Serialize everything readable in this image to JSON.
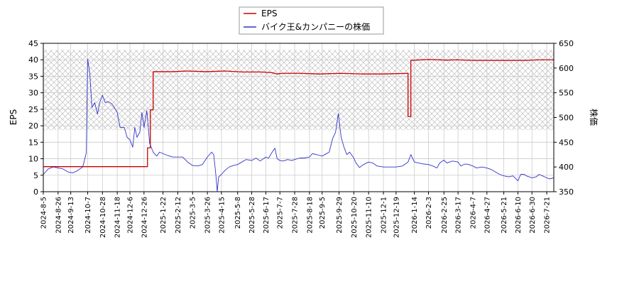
{
  "chart_data": {
    "type": "line",
    "legend_position": "top-center",
    "grid": true,
    "y_left": {
      "label": "EPS",
      "lim": [
        0,
        45
      ],
      "ticks": [
        0,
        5,
        10,
        15,
        20,
        25,
        30,
        35,
        40,
        45
      ]
    },
    "y_right": {
      "label": "株価",
      "lim": [
        350,
        650
      ],
      "ticks": [
        350,
        400,
        450,
        500,
        550,
        600,
        650
      ]
    },
    "x_range": [
      "2024-08-05",
      "2026-07-31"
    ],
    "x_ticks": [
      "2024-8-5",
      "2024-8-26",
      "2024-9-13",
      "2024-10-7",
      "2024-10-28",
      "2024-11-18",
      "2024-12-6",
      "2024-12-26",
      "2025-1-22",
      "2025-2-12",
      "2025-3-5",
      "2025-3-26",
      "2025-4-15",
      "2025-5-8",
      "2025-5-28",
      "2025-6-17",
      "2025-7-7",
      "2025-7-28",
      "2025-8-18",
      "2025-9-5",
      "2025-9-29",
      "2025-10-20",
      "2025-11-10",
      "2025-12-1",
      "2025-12-19",
      "2026-1-14",
      "2026-2-3",
      "2026-2-25",
      "2026-3-17",
      "2026-4-7",
      "2026-4-27",
      "2026-5-21",
      "2026-6-10",
      "2026-6-30",
      "2026-7-21"
    ],
    "hatched_band": {
      "axis": "left",
      "y_from": 18.7,
      "y_to": 43
    },
    "series": [
      {
        "name": "EPS",
        "axis": "left",
        "color": "#cc0000",
        "points": [
          [
            "2024-08-05",
            7.6
          ],
          [
            "2024-12-31",
            7.6
          ],
          [
            "2024-12-31",
            13.3
          ],
          [
            "2025-01-04",
            13.3
          ],
          [
            "2025-01-04",
            24.8
          ],
          [
            "2025-01-08",
            24.8
          ],
          [
            "2025-01-08",
            36.4
          ],
          [
            "2025-02-05",
            36.4
          ],
          [
            "2025-02-25",
            36.6
          ],
          [
            "2025-03-25",
            36.4
          ],
          [
            "2025-04-20",
            36.6
          ],
          [
            "2025-05-15",
            36.3
          ],
          [
            "2025-06-10",
            36.3
          ],
          [
            "2025-06-26",
            36.1
          ],
          [
            "2025-07-03",
            35.7
          ],
          [
            "2025-07-10",
            35.9
          ],
          [
            "2025-08-05",
            35.9
          ],
          [
            "2025-09-01",
            35.7
          ],
          [
            "2025-10-01",
            35.9
          ],
          [
            "2025-11-01",
            35.7
          ],
          [
            "2025-12-01",
            35.7
          ],
          [
            "2026-01-05",
            35.9
          ],
          [
            "2026-01-05",
            22.8
          ],
          [
            "2026-01-09",
            22.8
          ],
          [
            "2026-01-09",
            39.8
          ],
          [
            "2026-01-15",
            39.9
          ],
          [
            "2026-02-03",
            40.1
          ],
          [
            "2026-03-01",
            39.9
          ],
          [
            "2026-03-15",
            40.0
          ],
          [
            "2026-04-10",
            39.8
          ],
          [
            "2026-05-01",
            39.8
          ],
          [
            "2026-06-01",
            39.8
          ],
          [
            "2026-06-20",
            39.8
          ],
          [
            "2026-07-10",
            40.0
          ],
          [
            "2026-07-31",
            40.0
          ]
        ]
      },
      {
        "name": "バイク王&カンパニーの株価",
        "axis": "right",
        "color": "#3333cc",
        "points": [
          [
            "2024-08-05",
            385
          ],
          [
            "2024-08-12",
            396
          ],
          [
            "2024-08-19",
            400
          ],
          [
            "2024-08-26",
            398
          ],
          [
            "2024-09-02",
            396
          ],
          [
            "2024-09-09",
            390
          ],
          [
            "2024-09-16",
            388
          ],
          [
            "2024-09-23",
            393
          ],
          [
            "2024-09-30",
            400
          ],
          [
            "2024-10-05",
            428
          ],
          [
            "2024-10-07",
            618
          ],
          [
            "2024-10-10",
            590
          ],
          [
            "2024-10-13",
            520
          ],
          [
            "2024-10-17",
            530
          ],
          [
            "2024-10-21",
            507
          ],
          [
            "2024-10-24",
            530
          ],
          [
            "2024-10-28",
            545
          ],
          [
            "2024-11-01",
            530
          ],
          [
            "2024-11-05",
            532
          ],
          [
            "2024-11-10",
            528
          ],
          [
            "2024-11-14",
            520
          ],
          [
            "2024-11-18",
            510
          ],
          [
            "2024-11-22",
            480
          ],
          [
            "2024-11-28",
            480
          ],
          [
            "2024-12-02",
            460
          ],
          [
            "2024-12-06",
            455
          ],
          [
            "2024-12-10",
            440
          ],
          [
            "2024-12-13",
            480
          ],
          [
            "2024-12-16",
            460
          ],
          [
            "2024-12-20",
            470
          ],
          [
            "2024-12-23",
            510
          ],
          [
            "2024-12-26",
            480
          ],
          [
            "2024-12-30",
            514
          ],
          [
            "2025-01-03",
            448
          ],
          [
            "2025-01-08",
            430
          ],
          [
            "2025-01-13",
            422
          ],
          [
            "2025-01-17",
            430
          ],
          [
            "2025-01-22",
            427
          ],
          [
            "2025-01-29",
            423
          ],
          [
            "2025-02-05",
            420
          ],
          [
            "2025-02-12",
            420
          ],
          [
            "2025-02-19",
            420
          ],
          [
            "2025-02-26",
            410
          ],
          [
            "2025-03-05",
            403
          ],
          [
            "2025-03-12",
            402
          ],
          [
            "2025-03-19",
            405
          ],
          [
            "2025-03-26",
            420
          ],
          [
            "2025-04-01",
            430
          ],
          [
            "2025-04-04",
            425
          ],
          [
            "2025-04-07",
            385
          ],
          [
            "2025-04-09",
            350
          ],
          [
            "2025-04-11",
            380
          ],
          [
            "2025-04-15",
            385
          ],
          [
            "2025-04-20",
            393
          ],
          [
            "2025-04-26",
            400
          ],
          [
            "2025-05-02",
            403
          ],
          [
            "2025-05-08",
            405
          ],
          [
            "2025-05-14",
            410
          ],
          [
            "2025-05-20",
            415
          ],
          [
            "2025-05-28",
            413
          ],
          [
            "2025-06-03",
            418
          ],
          [
            "2025-06-09",
            412
          ],
          [
            "2025-06-13",
            416
          ],
          [
            "2025-06-17",
            420
          ],
          [
            "2025-06-21",
            418
          ],
          [
            "2025-06-26",
            430
          ],
          [
            "2025-06-30",
            438
          ],
          [
            "2025-07-03",
            417
          ],
          [
            "2025-07-07",
            413
          ],
          [
            "2025-07-12",
            412
          ],
          [
            "2025-07-18",
            415
          ],
          [
            "2025-07-24",
            413
          ],
          [
            "2025-07-28",
            415
          ],
          [
            "2025-08-04",
            418
          ],
          [
            "2025-08-10",
            418
          ],
          [
            "2025-08-18",
            420
          ],
          [
            "2025-08-22",
            427
          ],
          [
            "2025-08-28",
            425
          ],
          [
            "2025-09-05",
            422
          ],
          [
            "2025-09-10",
            426
          ],
          [
            "2025-09-15",
            430
          ],
          [
            "2025-09-20",
            458
          ],
          [
            "2025-09-24",
            470
          ],
          [
            "2025-09-28",
            508
          ],
          [
            "2025-10-02",
            460
          ],
          [
            "2025-10-06",
            440
          ],
          [
            "2025-10-10",
            425
          ],
          [
            "2025-10-14",
            430
          ],
          [
            "2025-10-20",
            418
          ],
          [
            "2025-10-23",
            408
          ],
          [
            "2025-10-28",
            399
          ],
          [
            "2025-11-03",
            405
          ],
          [
            "2025-11-10",
            410
          ],
          [
            "2025-11-16",
            408
          ],
          [
            "2025-11-22",
            402
          ],
          [
            "2025-12-01",
            400
          ],
          [
            "2025-12-10",
            400
          ],
          [
            "2025-12-19",
            400
          ],
          [
            "2025-12-28",
            402
          ],
          [
            "2026-01-05",
            410
          ],
          [
            "2026-01-09",
            425
          ],
          [
            "2026-01-14",
            410
          ],
          [
            "2026-01-20",
            408
          ],
          [
            "2026-01-27",
            406
          ],
          [
            "2026-02-03",
            405
          ],
          [
            "2026-02-09",
            402
          ],
          [
            "2026-02-15",
            398
          ],
          [
            "2026-02-19",
            408
          ],
          [
            "2026-02-25",
            414
          ],
          [
            "2026-03-01",
            408
          ],
          [
            "2026-03-09",
            412
          ],
          [
            "2026-03-17",
            410
          ],
          [
            "2026-03-21",
            402
          ],
          [
            "2026-03-27",
            406
          ],
          [
            "2026-04-01",
            405
          ],
          [
            "2026-04-07",
            402
          ],
          [
            "2026-04-12",
            398
          ],
          [
            "2026-04-20",
            400
          ],
          [
            "2026-04-27",
            398
          ],
          [
            "2026-05-03",
            395
          ],
          [
            "2026-05-09",
            390
          ],
          [
            "2026-05-15",
            385
          ],
          [
            "2026-05-21",
            382
          ],
          [
            "2026-05-28",
            380
          ],
          [
            "2026-06-03",
            382
          ],
          [
            "2026-06-08",
            375
          ],
          [
            "2026-06-10",
            372
          ],
          [
            "2026-06-14",
            385
          ],
          [
            "2026-06-19",
            385
          ],
          [
            "2026-06-22",
            382
          ],
          [
            "2026-06-26",
            380
          ],
          [
            "2026-06-30",
            378
          ],
          [
            "2026-07-06",
            380
          ],
          [
            "2026-07-10",
            385
          ],
          [
            "2026-07-15",
            382
          ],
          [
            "2026-07-21",
            378
          ],
          [
            "2026-07-25",
            376
          ],
          [
            "2026-07-31",
            378
          ]
        ]
      }
    ]
  }
}
